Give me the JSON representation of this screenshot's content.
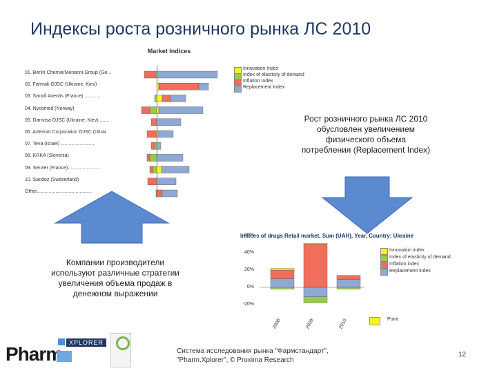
{
  "slide": {
    "title": "Индексы роста розничного рынка ЛС 2010",
    "note_right": "Рост розничного рынка ЛС 2010 обусловлен увеличением физического объема потребления (Replacement Index)",
    "note_left": "Компании производители используют различные стратегии увеличения объема продаж в денежном выражении",
    "footer": "Система исследования рынка \"Фармстандарт\", \"Pharm.Xplorer\", © Proxima Research",
    "page_number": "12"
  },
  "logo": {
    "pharm": "Pharm",
    "xplorer": "XPLORER"
  },
  "colors": {
    "innovation": "#f5f51e",
    "elasticity": "#9bc94a",
    "inflation": "#f26d5b",
    "replacement": "#8fa9d4",
    "arrow": "#5b8ad0",
    "title": "#1f3864"
  },
  "chart_data": [
    {
      "type": "bar",
      "title": "Market Indices",
      "stacked": true,
      "orientation": "horizontal",
      "categories": [
        "01. Berlin Chemie/Menarini Group (Ge...",
        "02. Farmak OJSC (Ukraine, Kiev)",
        "03. Sanofi Aventis (France) ............",
        "04. Nycomed (Norway)",
        "05. Darnitsa OJSC (Ukraine, Kiev)........",
        "06. Arterium Corporation OJSC (Ukrai",
        "07. Teva (Israel) .........................",
        "08. KRKA (Slovenia)",
        "09. Servier (France)........................",
        "10. Sandoz (Switzerland)",
        "Other........................................."
      ],
      "legend": [
        "Innovation Index",
        "Index of elasticity of demand",
        "Inflation Index",
        "Replacement Index"
      ],
      "legend_position": "top-right",
      "series": [
        {
          "name": "Innovation Index",
          "color": "#f5f51e",
          "values": [
            0,
            3,
            8,
            3,
            0,
            2,
            0,
            0,
            7,
            0,
            0
          ]
        },
        {
          "name": "Index of elasticity of demand",
          "color": "#9bc94a",
          "values": [
            -2,
            0,
            -3,
            -10,
            0,
            0,
            -3,
            -10,
            -6,
            0,
            -1
          ]
        },
        {
          "name": "Inflation Index",
          "color": "#f26d5b",
          "values": [
            -16,
            58,
            12,
            -12,
            -8,
            -14,
            -5,
            -4,
            -4,
            -13,
            8
          ]
        },
        {
          "name": "Replacement Index",
          "color": "#8fa9d4",
          "values": [
            88,
            14,
            22,
            64,
            35,
            22,
            6,
            38,
            40,
            28,
            22
          ]
        }
      ]
    },
    {
      "type": "bar",
      "title": "Indices of drugs Retail market, Sum (UAH), Year, Country: Ukraine",
      "stacked": true,
      "categories": [
        "2008",
        "2009",
        "2010"
      ],
      "ylim": [
        -20,
        60
      ],
      "yticks": [
        "60%",
        "40%",
        "20%",
        "0%",
        "-20%"
      ],
      "legend": [
        "Innovation index",
        "Index of elasticity of demand",
        "Inflation index",
        "Replacement index"
      ],
      "legend_position": "right",
      "series": [
        {
          "name": "Innovation index",
          "color": "#f5f51e",
          "values": [
            2,
            1,
            1
          ]
        },
        {
          "name": "Index of elasticity of demand",
          "color": "#9bc94a",
          "values": [
            -2,
            -7,
            -2
          ]
        },
        {
          "name": "Inflation index",
          "color": "#f26d5b",
          "values": [
            10,
            50,
            4
          ]
        },
        {
          "name": "Replacement index",
          "color": "#8fa9d4",
          "values": [
            10,
            -11,
            9
          ]
        }
      ],
      "footer_label": "Point"
    }
  ]
}
